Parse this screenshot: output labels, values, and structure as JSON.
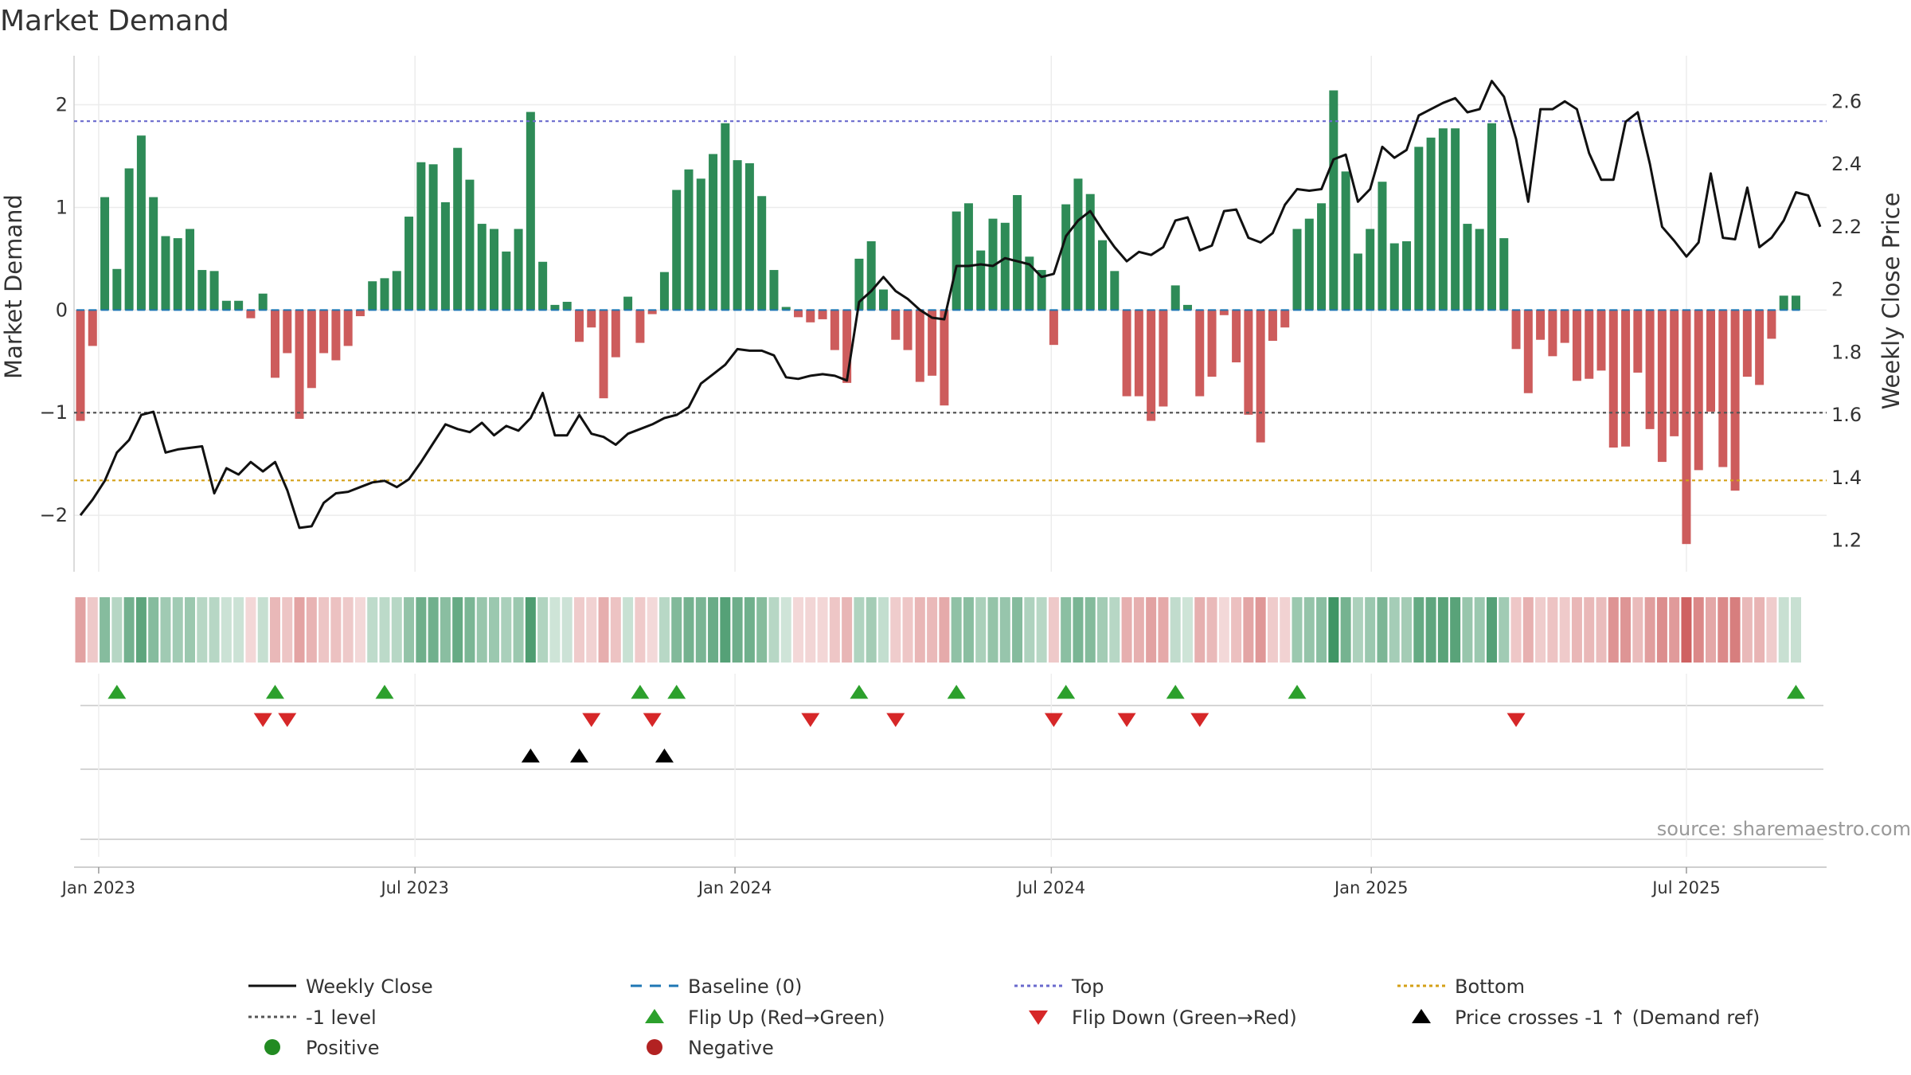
{
  "chart_data": {
    "type": "bar",
    "title": "Market Demand",
    "ylabel_left": "Market Demand",
    "ylabel_right": "Weekly Close Price",
    "ylim_left": [
      -2.55,
      2.4
    ],
    "ylim_right": [
      1.1,
      2.72
    ],
    "yticks_left": [
      {
        "v": 2,
        "label": "2"
      },
      {
        "v": 1,
        "label": "1"
      },
      {
        "v": 0,
        "label": "0"
      },
      {
        "v": -1,
        "label": "−1"
      },
      {
        "v": -2,
        "label": "−2"
      }
    ],
    "yticks_right": [
      {
        "v": 2.6,
        "label": "2.6"
      },
      {
        "v": 2.4,
        "label": "2.4"
      },
      {
        "v": 2.2,
        "label": "2.2"
      },
      {
        "v": 2.0,
        "label": "2"
      },
      {
        "v": 1.8,
        "label": "1.8"
      },
      {
        "v": 1.6,
        "label": "1.6"
      },
      {
        "v": 1.4,
        "label": "1.4"
      },
      {
        "v": 1.2,
        "label": "1.2"
      }
    ],
    "xticks": [
      {
        "week": 1.5,
        "label": "Jan 2023"
      },
      {
        "week": 27.5,
        "label": "Jul 2023"
      },
      {
        "week": 53.8,
        "label": "Jan 2024"
      },
      {
        "week": 79.8,
        "label": "Jul 2024"
      },
      {
        "week": 106.1,
        "label": "Jan 2025"
      },
      {
        "week": 132,
        "label": "Jul 2025"
      }
    ],
    "top_level": 1.84,
    "minus1_level": -1,
    "bottom_level": -1.66,
    "demand": [
      -1.08,
      -0.35,
      1.1,
      0.4,
      1.38,
      1.7,
      1.1,
      0.72,
      0.7,
      0.79,
      0.39,
      0.38,
      0.09,
      0.09,
      -0.08,
      0.16,
      -0.66,
      -0.42,
      -1.06,
      -0.76,
      -0.42,
      -0.49,
      -0.35,
      -0.06,
      0.28,
      0.31,
      0.38,
      0.91,
      1.44,
      1.42,
      1.05,
      1.58,
      1.27,
      0.84,
      0.79,
      0.57,
      0.79,
      1.93,
      0.47,
      0.05,
      0.08,
      -0.31,
      -0.17,
      -0.86,
      -0.46,
      0.13,
      -0.32,
      -0.04,
      0.37,
      1.17,
      1.37,
      1.28,
      1.52,
      1.82,
      1.46,
      1.43,
      1.11,
      0.39,
      0.03,
      -0.07,
      -0.12,
      -0.09,
      -0.39,
      -0.71,
      0.5,
      0.67,
      0.2,
      -0.29,
      -0.39,
      -0.7,
      -0.64,
      -0.93,
      0.96,
      1.04,
      0.58,
      0.89,
      0.85,
      1.12,
      0.52,
      0.39,
      -0.34,
      1.03,
      1.28,
      1.13,
      0.68,
      0.38,
      -0.84,
      -0.84,
      -1.08,
      -0.94,
      0.24,
      0.05,
      -0.84,
      -0.65,
      -0.05,
      -0.51,
      -1.02,
      -1.29,
      -0.3,
      -0.17,
      0.79,
      0.89,
      1.04,
      2.14,
      1.35,
      0.55,
      0.79,
      1.25,
      0.65,
      0.67,
      1.59,
      1.68,
      1.77,
      1.77,
      0.84,
      0.79,
      1.82,
      0.7,
      -0.38,
      -0.81,
      -0.29,
      -0.45,
      -0.32,
      -0.69,
      -0.67,
      -0.59,
      -1.34,
      -1.33,
      -0.61,
      -1.16,
      -1.48,
      -1.23,
      -2.28,
      -1.56,
      -0.99,
      -1.53,
      -1.76,
      -0.65,
      -0.73,
      -0.28,
      0.14,
      0.14
    ],
    "weekly_close": [
      1.28,
      1.33,
      1.39,
      1.48,
      1.52,
      1.6,
      1.61,
      1.48,
      1.49,
      1.495,
      1.5,
      1.35,
      1.43,
      1.41,
      1.45,
      1.42,
      1.45,
      1.36,
      1.24,
      1.245,
      1.32,
      1.35,
      1.355,
      1.37,
      1.385,
      1.39,
      1.37,
      1.395,
      1.45,
      1.51,
      1.57,
      1.555,
      1.545,
      1.575,
      1.535,
      1.565,
      1.55,
      1.59,
      1.67,
      1.535,
      1.535,
      1.6,
      1.54,
      1.53,
      1.505,
      1.54,
      1.555,
      1.57,
      1.59,
      1.6,
      1.625,
      1.7,
      1.73,
      1.76,
      1.81,
      1.805,
      1.805,
      1.79,
      1.72,
      1.715,
      1.725,
      1.73,
      1.725,
      1.71,
      1.96,
      1.995,
      2.04,
      1.995,
      1.97,
      1.935,
      1.91,
      1.905,
      2.075,
      2.075,
      2.08,
      2.075,
      2.1,
      2.09,
      2.08,
      2.04,
      2.05,
      2.17,
      2.22,
      2.25,
      2.19,
      2.135,
      2.09,
      2.12,
      2.11,
      2.135,
      2.22,
      2.23,
      2.125,
      2.14,
      2.25,
      2.255,
      2.165,
      2.15,
      2.18,
      2.27,
      2.32,
      2.315,
      2.32,
      2.415,
      2.43,
      2.28,
      2.32,
      2.455,
      2.42,
      2.445,
      2.555,
      2.575,
      2.595,
      2.61,
      2.565,
      2.575,
      2.665,
      2.615,
      2.48,
      2.28,
      2.575,
      2.575,
      2.6,
      2.575,
      2.435,
      2.35,
      2.35,
      2.535,
      2.565,
      2.4,
      2.2,
      2.155,
      2.105,
      2.15,
      2.37,
      2.165,
      2.16,
      2.325,
      2.135,
      2.165,
      2.22,
      2.31,
      2.3,
      2.2
    ],
    "flip_up_weeks": [
      3,
      16,
      25,
      46,
      49,
      64,
      72,
      81,
      90,
      100,
      141
    ],
    "flip_down_weeks": [
      15,
      17,
      42,
      47,
      60,
      67,
      80,
      86,
      92,
      118
    ],
    "price_cross_weeks": [
      37,
      41,
      48
    ],
    "legend": [
      {
        "label": "Weekly Close",
        "symbol": "line",
        "color": "#111111"
      },
      {
        "label": "Baseline (0)",
        "symbol": "dashed",
        "color": "#1f77b4"
      },
      {
        "label": "Top",
        "symbol": "dotted",
        "color": "#6a6acd"
      },
      {
        "label": "Bottom",
        "symbol": "dotted",
        "color": "#d4a017"
      },
      {
        "label": "-1 level",
        "symbol": "dotted",
        "color": "#555555"
      },
      {
        "label": "Flip Up (Red→Green)",
        "symbol": "triangle-up",
        "color": "#2ca02c"
      },
      {
        "label": "Flip Down (Green→Red)",
        "symbol": "triangle-down",
        "color": "#d62728"
      },
      {
        "label": "Price crosses -1 ↑ (Demand ref)",
        "symbol": "triangle-up",
        "color": "#000000"
      },
      {
        "label": "Positive",
        "symbol": "dot",
        "color": "#228b22"
      },
      {
        "label": "Negative",
        "symbol": "dot",
        "color": "#b22222"
      }
    ],
    "source": "source: sharemaestro.com"
  },
  "colors": {
    "positive_bar": "#2e8b57",
    "negative_bar": "#cd5c5c",
    "top_line": "#6a6acd",
    "bottom_line": "#d4a017",
    "minus1_line": "#555555",
    "baseline": "#1f77b4",
    "price_line": "#111111",
    "flip_up": "#2ca02c",
    "flip_down": "#d62728",
    "cross": "#000000"
  }
}
